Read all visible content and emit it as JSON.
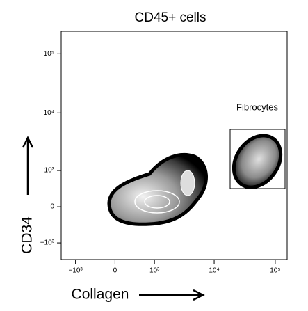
{
  "chart_data": {
    "type": "density",
    "title": "CD45+ cells",
    "x_label": "Collagen",
    "y_label": "CD34",
    "annotation": "Fibrocytes",
    "xscale": "biexponential",
    "yscale": "biexponential",
    "xlim": [
      -1778,
      156600
    ],
    "ylim": [
      -2000,
      240000
    ],
    "xticks": [
      {
        "value": -1000,
        "label": "−10³"
      },
      0,
      {
        "value": 1000,
        "label": "10³"
      },
      {
        "value": 10000,
        "label": "10⁴"
      },
      {
        "value": 100000,
        "label": "10⁵"
      }
    ],
    "yticks": [
      {
        "value": -1000,
        "label": "−10³"
      },
      0,
      {
        "value": 1000,
        "label": "10³"
      },
      {
        "value": 10000,
        "label": "10⁴"
      },
      {
        "value": 100000,
        "label": "10⁵"
      }
    ]
  }
}
